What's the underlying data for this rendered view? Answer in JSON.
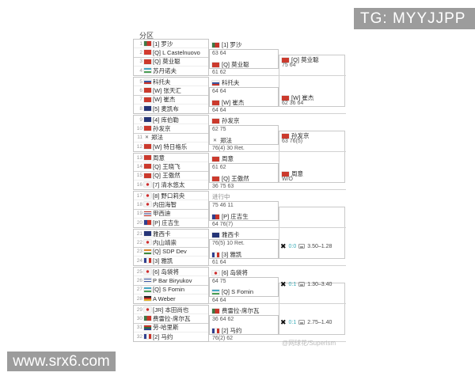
{
  "page": {
    "title": "分区",
    "tg_badge": "TG: MYYJJPP",
    "site_watermark": "www.srx6.com",
    "photo_credit": "@网球花/Superism"
  },
  "colors": {
    "badge_bg": "#9c9c9c",
    "live_score_text": "#3aacb8",
    "border": "#c5c5c5"
  },
  "icons": {
    "bet_x": "✖",
    "no_flag_mark": "✕",
    "live_indicator": "live-indicator"
  },
  "flag_styles": {
    "chn": "#cb3a2d",
    "sui": "#d23b2f",
    "por": "linear-gradient(90deg,#3d7a45 40%,#c8342a 40%)",
    "uzb": "linear-gradient(180deg,#45a7c4 33%,#f2f2f2 33%,#f2f2f2 66%,#4a9e55 66%)",
    "rus": "linear-gradient(180deg,#f2f2f2 33%,#3a56a0 33%,#3a56a0 66%,#c8342a 66%)",
    "aus": "#253577",
    "jpn": "radial-gradient(circle at 50% 50%, #cf2e2e 0 1.6px, #f5f5f5 1.9px)",
    "tha": "linear-gradient(180deg,#c8342a 18%,#f2f2f2 18%,#f2f2f2 38%,#30408f 38%,#30408f 62%,#f2f2f2 62%,#f2f2f2 82%,#c8342a 82%)",
    "tpe": "linear-gradient(90deg,#30408f 45%,#c8342a 45%)",
    "ind": "linear-gradient(180deg,#e08a2e 33%,#f2f2f2 33%,#f2f2f2 66%,#3f8a3f 66%)",
    "fra": "linear-gradient(90deg,#30408f 34%,#f2f2f2 34%,#f2f2f2 67%,#c8342a 67%)",
    "isr": "linear-gradient(180deg,#f2f2f2 15%,#3a56a0 15%,#3a56a0 35%,#f2f2f2 35%,#f2f2f2 65%,#3a56a0 65%,#3a56a0 85%,#f2f2f2 85%)",
    "ger": "linear-gradient(180deg,#222222 33%,#c8342a 33%,#c8342a 66%,#e0b02e 66%)",
    "rsa": "linear-gradient(180deg,#c8342a 33%,#2e6e3e 33%,#2e6e3e 66%,#30408f 66%)",
    "x": "none"
  },
  "bracket": {
    "groups": [
      {
        "players": [
          {
            "n": "1",
            "flag": "por",
            "seed": "[1]",
            "name": "罗沙"
          },
          {
            "n": "2",
            "flag": "sui",
            "seed": "[Q]",
            "name": "L Castelnuovo"
          },
          {
            "n": "3",
            "flag": "chn",
            "seed": "[Q]",
            "name": "莫业聪"
          },
          {
            "n": "4",
            "flag": "uzb",
            "seed": "",
            "name": "苏丹诺夫"
          }
        ],
        "r1": [
          {
            "flag": "por",
            "seed": "[1]",
            "name": "罗沙",
            "score": "63 64",
            "status": false
          },
          {
            "flag": "chn",
            "seed": "[Q]",
            "name": "莫业聪",
            "score": "61 62",
            "status": false
          }
        ],
        "r2": {
          "flag": "chn",
          "seed": "[Q]",
          "name": "莫业聪",
          "score": "75 64"
        },
        "betting": null
      },
      {
        "players": [
          {
            "n": "5",
            "flag": "rus",
            "seed": "",
            "name": "科托夫"
          },
          {
            "n": "6",
            "flag": "chn",
            "seed": "[W]",
            "name": "张天汇"
          },
          {
            "n": "7",
            "flag": "chn",
            "seed": "[W]",
            "name": "崔杰"
          },
          {
            "n": "8",
            "flag": "aus",
            "seed": "[5]",
            "name": "麦凯布"
          }
        ],
        "r1": [
          {
            "flag": "rus",
            "seed": "",
            "name": "科托夫",
            "score": "64 64",
            "status": false
          },
          {
            "flag": "chn",
            "seed": "[W]",
            "name": "崔杰",
            "score": "64 64",
            "status": false
          }
        ],
        "r2": {
          "flag": "chn",
          "seed": "[W]",
          "name": "崔杰",
          "score": "62 36 64"
        },
        "betting": null
      },
      {
        "players": [
          {
            "n": "9",
            "flag": "aus",
            "seed": "[4]",
            "name": "库伯勒"
          },
          {
            "n": "10",
            "flag": "chn",
            "seed": "",
            "name": "孙发京"
          },
          {
            "n": "11",
            "flag": "x",
            "seed": "",
            "name": "郑法"
          },
          {
            "n": "12",
            "flag": "chn",
            "seed": "[W]",
            "name": "特日格乐"
          }
        ],
        "r1": [
          {
            "flag": "chn",
            "seed": "",
            "name": "孙发京",
            "score": "62 75",
            "status": false
          },
          {
            "flag": "x",
            "seed": "",
            "name": "郑法",
            "score": "76(4) 30 Ret.",
            "status": false
          }
        ],
        "r2": {
          "flag": "chn",
          "seed": "",
          "name": "孙发京",
          "score": "63 76(5)"
        },
        "betting": null
      },
      {
        "players": [
          {
            "n": "13",
            "flag": "chn",
            "seed": "",
            "name": "周意"
          },
          {
            "n": "14",
            "flag": "chn",
            "seed": "[Q]",
            "name": "王晓飞"
          },
          {
            "n": "15",
            "flag": "chn",
            "seed": "[Q]",
            "name": "王傲然"
          },
          {
            "n": "16",
            "flag": "jpn",
            "seed": "[7]",
            "name": "清水悠太"
          }
        ],
        "r1": [
          {
            "flag": "chn",
            "seed": "",
            "name": "周意",
            "score": "61 62",
            "status": false
          },
          {
            "flag": "chn",
            "seed": "[Q]",
            "name": "王傲然",
            "score": "36 75 63",
            "status": false
          }
        ],
        "r2": {
          "flag": "chn",
          "seed": "",
          "name": "周意",
          "score": "W/O"
        },
        "betting": null
      },
      {
        "players": [
          {
            "n": "17",
            "flag": "jpn",
            "seed": "[8]",
            "name": "野口莉央"
          },
          {
            "n": "18",
            "flag": "jpn",
            "seed": "",
            "name": "内田海智"
          },
          {
            "n": "19",
            "flag": "tha",
            "seed": "",
            "name": "甲西迪"
          },
          {
            "n": "20",
            "flag": "tpe",
            "seed": "[P]",
            "name": "庄吉生"
          }
        ],
        "r1": [
          {
            "flag": null,
            "seed": "",
            "name": "进行中",
            "score": "75 46 11",
            "status": true
          },
          {
            "flag": "tpe",
            "seed": "[P]",
            "name": "庄吉生",
            "score": "64 76(7)",
            "status": false
          }
        ],
        "r2": null,
        "betting": null
      },
      {
        "players": [
          {
            "n": "21",
            "flag": "aus",
            "seed": "",
            "name": "雅西卡"
          },
          {
            "n": "22",
            "flag": "jpn",
            "seed": "",
            "name": "内山靖崇"
          },
          {
            "n": "23",
            "flag": "ind",
            "seed": "[Q]",
            "name": "SDP Dev"
          },
          {
            "n": "24",
            "flag": "fra",
            "seed": "[3]",
            "name": "雅凯"
          }
        ],
        "r1": [
          {
            "flag": "aus",
            "seed": "",
            "name": "雅西卡",
            "score": "76(5) 10 Ret.",
            "status": false
          },
          {
            "flag": "fra",
            "seed": "[3]",
            "name": "雅凯",
            "score": "61 64",
            "status": false
          }
        ],
        "r2": null,
        "betting": {
          "live_score": "0:0",
          "odds": "3.50–1.28"
        }
      },
      {
        "players": [
          {
            "n": "25",
            "flag": "jpn",
            "seed": "[6]",
            "name": "岛袋将"
          },
          {
            "n": "26",
            "flag": "isr",
            "seed": "",
            "name": "P Bar Biryukov"
          },
          {
            "n": "27",
            "flag": "uzb",
            "seed": "[Q]",
            "name": "S Fomin"
          },
          {
            "n": "28",
            "flag": "ger",
            "seed": "",
            "name": "A Weber"
          }
        ],
        "r1": [
          {
            "flag": "jpn",
            "seed": "[6]",
            "name": "岛袋将",
            "score": "64 75",
            "status": false
          },
          {
            "flag": "uzb",
            "seed": "[Q]",
            "name": "S Fomin",
            "score": "64 64",
            "status": false
          }
        ],
        "r2": null,
        "betting": {
          "live_score": "0:1",
          "odds": "1.30–3.40"
        }
      },
      {
        "players": [
          {
            "n": "29",
            "flag": "jpn",
            "seed": "[JR]",
            "name": "本田尚也"
          },
          {
            "n": "30",
            "flag": "por",
            "seed": "",
            "name": "费雷拉-席尔瓦"
          },
          {
            "n": "31",
            "flag": "rsa",
            "seed": "",
            "name": "劳-哈里斯"
          },
          {
            "n": "32",
            "flag": "fra",
            "seed": "[2]",
            "name": "马约"
          }
        ],
        "r1": [
          {
            "flag": "por",
            "seed": "",
            "name": "费雷拉-席尔瓦",
            "score": "36 64 62",
            "status": false
          },
          {
            "flag": "fra",
            "seed": "[2]",
            "name": "马约",
            "score": "76(2) 62",
            "status": false
          }
        ],
        "r2": null,
        "betting": {
          "live_score": "0:1",
          "odds": "2.75–1.40"
        }
      }
    ]
  }
}
